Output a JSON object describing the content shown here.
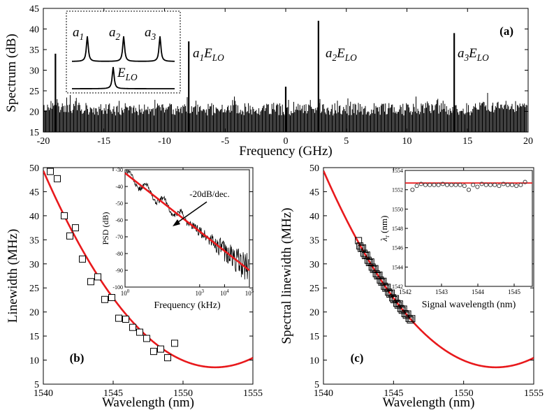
{
  "chart_data": [
    {
      "panel": "a",
      "type": "line",
      "label": "(a)",
      "xlabel": "Frequency (GHz)",
      "ylabel": "Spectrum (dB)",
      "xlim": [
        -20,
        20
      ],
      "ylim": [
        15,
        45
      ],
      "xticks": [
        -20,
        -15,
        -10,
        -5,
        0,
        5,
        10,
        15,
        20
      ],
      "yticks": [
        15,
        20,
        25,
        30,
        35,
        40,
        45
      ],
      "noise_floor_db": [
        17,
        24
      ],
      "peaks": [
        {
          "x": -19.0,
          "y": 34
        },
        {
          "x": -8.0,
          "y": 37
        },
        {
          "x": 0.0,
          "y": 26
        },
        {
          "x": 2.7,
          "y": 42
        },
        {
          "x": 13.9,
          "y": 39
        }
      ],
      "annotations": [
        {
          "base": "a",
          "sub": "1",
          "tail": "E",
          "tail_sub": "LO",
          "near_x": -8.0
        },
        {
          "base": "a",
          "sub": "2",
          "tail": "E",
          "tail_sub": "LO",
          "near_x": 2.7
        },
        {
          "base": "a",
          "sub": "3",
          "tail": "E",
          "tail_sub": "LO",
          "near_x": 13.9
        }
      ],
      "inset": {
        "labels": [
          {
            "base": "a",
            "sub": "1"
          },
          {
            "base": "a",
            "sub": "2"
          },
          {
            "base": "a",
            "sub": "3"
          },
          {
            "base": "E",
            "sub": "LO"
          }
        ]
      }
    },
    {
      "panel": "b",
      "type": "scatter",
      "label": "(b)",
      "xlabel": "Wavelength (nm)",
      "ylabel": "Linewidth (MHz)",
      "xlim": [
        1540,
        1555
      ],
      "ylim": [
        5,
        50
      ],
      "xticks": [
        1540,
        1545,
        1550,
        1555
      ],
      "yticks": [
        5,
        10,
        15,
        20,
        25,
        30,
        35,
        40,
        45,
        50
      ],
      "points": [
        [
          1540.5,
          49.2
        ],
        [
          1541.0,
          47.7
        ],
        [
          1541.5,
          40.0
        ],
        [
          1541.9,
          35.8
        ],
        [
          1542.3,
          37.5
        ],
        [
          1542.8,
          31.0
        ],
        [
          1543.4,
          26.3
        ],
        [
          1543.9,
          27.3
        ],
        [
          1544.4,
          22.6
        ],
        [
          1544.9,
          23.0
        ],
        [
          1545.4,
          18.7
        ],
        [
          1545.9,
          18.5
        ],
        [
          1546.4,
          16.8
        ],
        [
          1546.9,
          15.8
        ],
        [
          1547.4,
          14.5
        ],
        [
          1547.9,
          11.8
        ],
        [
          1548.4,
          12.3
        ],
        [
          1548.9,
          10.5
        ],
        [
          1549.4,
          13.5
        ]
      ],
      "fit_curve": {
        "type": "parabola",
        "vertex": [
          1552.3,
          8.5
        ],
        "coefficient": 0.27,
        "color": "#e8191c"
      },
      "inset": {
        "type": "line",
        "xlabel": "Frequency (kHz)",
        "ylabel": "PSD (dB)",
        "xscale": "log",
        "xlim": [
          1,
          100000
        ],
        "ylim": [
          -100,
          -30
        ],
        "xticks": [
          1,
          1000,
          10000,
          100000
        ],
        "yticks": [
          -100,
          -90,
          -80,
          -70,
          -60,
          -50,
          -40,
          -30
        ],
        "fit_line": {
          "x": [
            1,
            100000
          ],
          "y": [
            -32,
            -90
          ],
          "color": "#e8191c"
        },
        "annotation": "-20dB/dec."
      }
    },
    {
      "panel": "c",
      "type": "scatter",
      "label": "(c)",
      "xlabel": "Wavelength (nm)",
      "ylabel": "Spectral linewidth (MHz)",
      "xlim": [
        1540,
        1555
      ],
      "ylim": [
        5,
        50
      ],
      "xticks": [
        1540,
        1545,
        1550,
        1555
      ],
      "yticks": [
        5,
        10,
        15,
        20,
        25,
        30,
        35,
        40,
        45,
        50
      ],
      "points_range": {
        "x_start": 1542.5,
        "x_end": 1546.3,
        "count": 40
      },
      "fit_curve": {
        "type": "parabola",
        "vertex": [
          1552.3,
          8.5
        ],
        "coefficient": 0.27,
        "color": "#e8191c"
      },
      "inset": {
        "type": "scatter",
        "xlabel": "Signal wavelength (nm)",
        "ylabel_base": "λ",
        "ylabel_sub": "r",
        "ylabel_unit": "(nm)",
        "xlim": [
          1542,
          1545.5
        ],
        "ylim": [
          1542,
          1554
        ],
        "xticks": [
          1542,
          1543,
          1544,
          1545
        ],
        "yticks": [
          1542,
          1544,
          1546,
          1548,
          1550,
          1552,
          1554
        ],
        "points_range": {
          "x_start": 1542.2,
          "x_end": 1545.3,
          "count": 27
        },
        "point_values": [
          1552.0,
          1552.4,
          1552.6,
          1552.5,
          1552.5,
          1552.5,
          1552.5,
          1552.6,
          1552.5,
          1552.5,
          1552.5,
          1552.5,
          1552.4,
          1552.0,
          1552.5,
          1552.3,
          1552.6,
          1552.5,
          1552.5,
          1552.5,
          1552.4,
          1552.6,
          1552.5,
          1552.5,
          1552.4,
          1552.5,
          1552.8
        ],
        "reference_line": {
          "y": 1552.7,
          "color": "#e8191c"
        }
      }
    }
  ]
}
